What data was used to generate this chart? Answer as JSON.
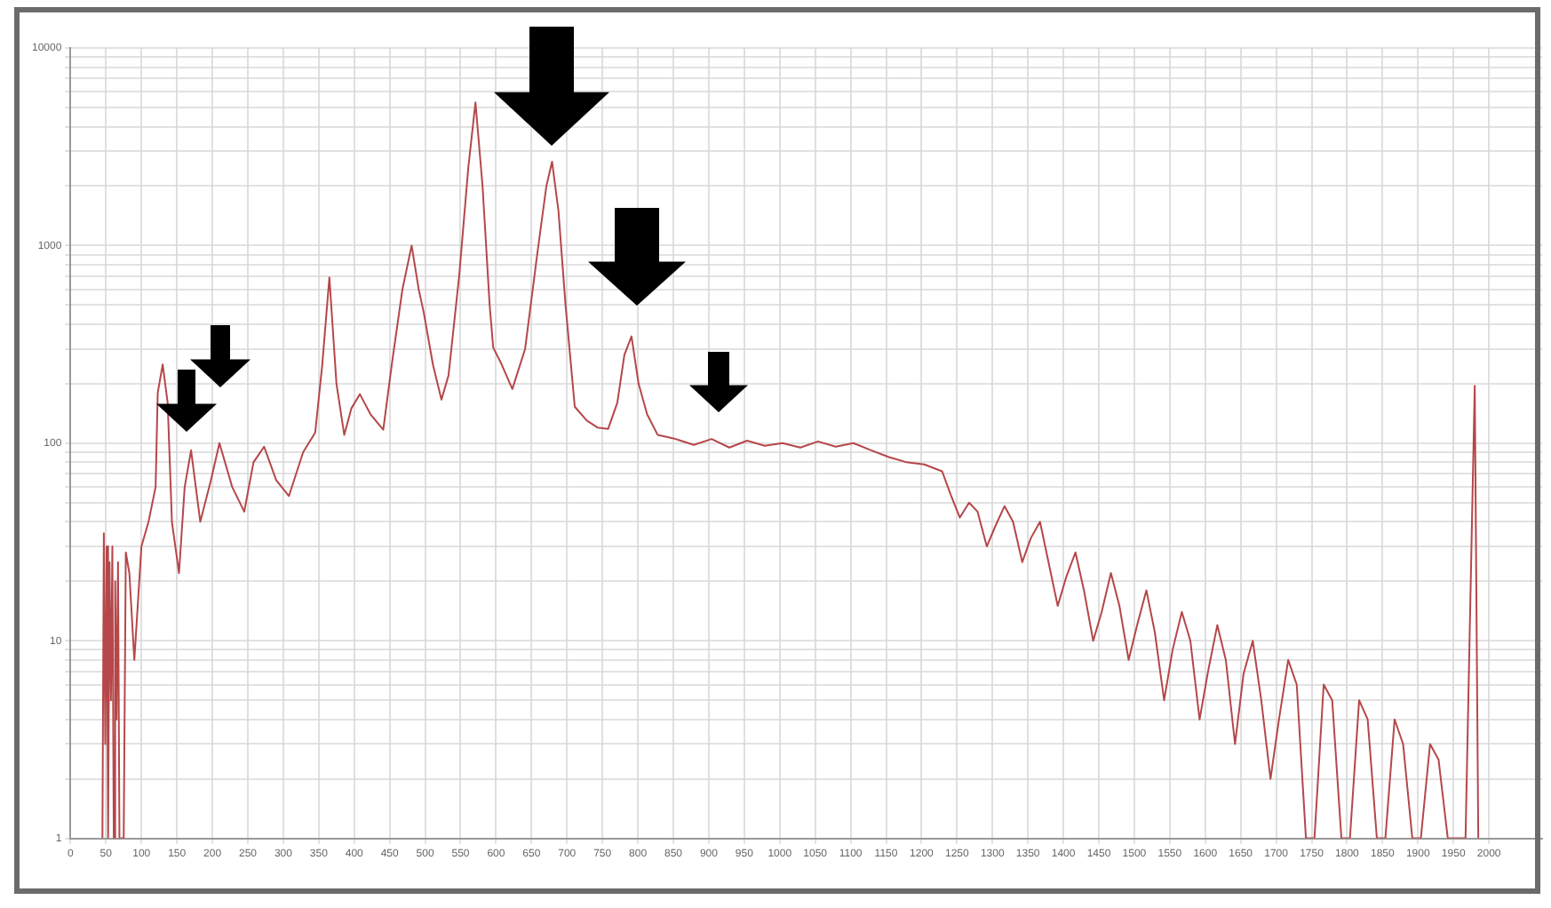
{
  "chart_data": {
    "type": "line",
    "log": "y",
    "grid": true,
    "marker": "none",
    "legend": false,
    "xlim": [
      0,
      2075
    ],
    "xticks": [
      0,
      50,
      100,
      150,
      200,
      250,
      300,
      350,
      400,
      450,
      500,
      550,
      600,
      650,
      700,
      750,
      800,
      850,
      900,
      950,
      1000,
      1050,
      1100,
      1150,
      1200,
      1250,
      1300,
      1350,
      1400,
      1450,
      1500,
      1550,
      1600,
      1650,
      1700,
      1750,
      1800,
      1850,
      1900,
      1950,
      2000
    ],
    "ylim": [
      1,
      10000
    ],
    "yticks": [
      1,
      {
        "value": 2,
        "label": null
      },
      {
        "value": 3,
        "label": null
      },
      {
        "value": 4,
        "label": null
      },
      {
        "value": 5,
        "label": null
      },
      {
        "value": 6,
        "label": null
      },
      {
        "value": 7,
        "label": null
      },
      {
        "value": 8,
        "label": null
      },
      {
        "value": 9,
        "label": null
      },
      10,
      {
        "value": 20,
        "label": null
      },
      {
        "value": 30,
        "label": null
      },
      {
        "value": 40,
        "label": null
      },
      {
        "value": 50,
        "label": null
      },
      {
        "value": 60,
        "label": null
      },
      {
        "value": 70,
        "label": null
      },
      {
        "value": 80,
        "label": null
      },
      {
        "value": 90,
        "label": null
      },
      100,
      {
        "value": 200,
        "label": null
      },
      {
        "value": 300,
        "label": null
      },
      {
        "value": 400,
        "label": null
      },
      {
        "value": 500,
        "label": null
      },
      {
        "value": 600,
        "label": null
      },
      {
        "value": 700,
        "label": null
      },
      {
        "value": 800,
        "label": null
      },
      {
        "value": 900,
        "label": null
      },
      1000,
      {
        "value": 2000,
        "label": null
      },
      {
        "value": 3000,
        "label": null
      },
      {
        "value": 4000,
        "label": null
      },
      {
        "value": 5000,
        "label": null
      },
      {
        "value": 6000,
        "label": null
      },
      {
        "value": 7000,
        "label": null
      },
      {
        "value": 8000,
        "label": null
      },
      {
        "value": 9000,
        "label": null
      },
      10000
    ],
    "series": [
      {
        "color": "#b5474a",
        "x": [
          45,
          47,
          49,
          51,
          53,
          55,
          57,
          59,
          61,
          63,
          65,
          67,
          69,
          75,
          78,
          83,
          90,
          100,
          110,
          120,
          123,
          130,
          137,
          143,
          153,
          161,
          170,
          183,
          198,
          210,
          228,
          245,
          258,
          273,
          290,
          308,
          328,
          345,
          355,
          365,
          375,
          386,
          396,
          408,
          423,
          441,
          453,
          468,
          481,
          491,
          498,
          511,
          523,
          533,
          548,
          561,
          571,
          581,
          591,
          596,
          608,
          623,
          641,
          658,
          671,
          679,
          688,
          698,
          711,
          728,
          743,
          758,
          771,
          781,
          791,
          801,
          813,
          828,
          853,
          879,
          904,
          929,
          954,
          979,
          1004,
          1029,
          1054,
          1079,
          1104,
          1129,
          1154,
          1179,
          1204,
          1229,
          1241,
          1254,
          1267,
          1279,
          1292,
          1304,
          1317,
          1329,
          1342,
          1354,
          1367,
          1379,
          1392,
          1404,
          1417,
          1429,
          1442,
          1454,
          1467,
          1479,
          1492,
          1504,
          1517,
          1529,
          1542,
          1554,
          1567,
          1579,
          1592,
          1604,
          1617,
          1629,
          1642,
          1654,
          1667,
          1679,
          1692,
          1704,
          1717,
          1729,
          1742,
          1754,
          1767,
          1779,
          1792,
          1804,
          1817,
          1829,
          1842,
          1854,
          1867,
          1879,
          1892,
          1904,
          1917,
          1929,
          1942,
          1954,
          1967,
          1980,
          1985
        ],
        "values": [
          1,
          35,
          3,
          30,
          1,
          25,
          5,
          30,
          1,
          20,
          4,
          25,
          1,
          1,
          28,
          22,
          8,
          30,
          40,
          60,
          180,
          250,
          160,
          40,
          22,
          60,
          92,
          40,
          65,
          100,
          60,
          45,
          80,
          96,
          65,
          54,
          90,
          113,
          250,
          690,
          200,
          110,
          150,
          177,
          140,
          117,
          250,
          600,
          1000,
          600,
          460,
          250,
          166,
          220,
          700,
          2500,
          5300,
          2000,
          500,
          305,
          250,
          188,
          300,
          900,
          2000,
          2660,
          1500,
          500,
          153,
          130,
          120,
          118,
          160,
          280,
          347,
          200,
          140,
          110,
          105,
          98,
          105,
          95,
          103,
          97,
          100,
          95,
          102,
          96,
          100,
          92,
          85,
          80,
          78,
          72,
          55,
          42,
          50,
          45,
          30,
          38,
          48,
          40,
          25,
          33,
          40,
          25,
          15,
          21,
          28,
          18,
          10,
          14,
          22,
          15,
          8,
          12,
          18,
          11,
          5,
          9,
          14,
          10,
          4,
          7,
          12,
          8,
          3,
          6.8,
          10,
          5,
          2,
          4,
          8,
          6,
          1,
          1,
          6,
          5,
          1,
          1,
          5,
          4,
          1,
          1,
          4,
          3,
          1,
          1,
          3,
          2.5,
          1,
          1,
          1,
          195,
          1
        ]
      }
    ]
  }
}
